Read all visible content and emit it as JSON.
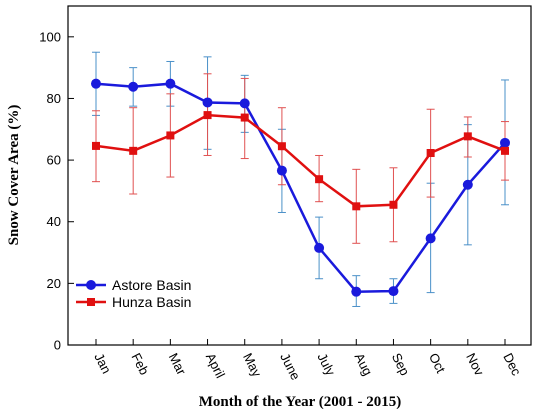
{
  "chart_data": {
    "type": "line",
    "xlabel": "Month of the Year (2001 - 2015)",
    "ylabel": "Snow Cover Area (%)",
    "categories": [
      "Jan",
      "Feb",
      "Mar",
      "April",
      "May",
      "June",
      "July",
      "Aug",
      "Sep",
      "Oct",
      "Nov",
      "Dec"
    ],
    "ylim": [
      0,
      110
    ],
    "yticks": [
      0,
      20,
      40,
      60,
      80,
      100
    ],
    "grid": false,
    "legend_position": "bottom-left",
    "series": [
      {
        "name": "Astore Basin",
        "color": "#1a1adc",
        "error_color": "#4a90c8",
        "marker": "circle",
        "values": [
          84.8,
          83.8,
          84.8,
          78.7,
          78.4,
          56.6,
          31.5,
          17.3,
          17.5,
          34.6,
          52.0,
          65.6
        ],
        "error_low": [
          74.5,
          77.5,
          77.5,
          63.5,
          69.0,
          43.0,
          21.5,
          12.5,
          13.5,
          17.0,
          32.5,
          45.5
        ],
        "error_high": [
          95.0,
          90.0,
          92.0,
          93.5,
          87.5,
          70.0,
          41.5,
          22.5,
          21.5,
          52.5,
          71.5,
          86.0
        ]
      },
      {
        "name": "Hunza Basin",
        "color": "#e01010",
        "error_color": "#e05050",
        "marker": "square",
        "values": [
          64.6,
          63.0,
          68.0,
          74.6,
          73.8,
          64.5,
          53.8,
          45.0,
          45.5,
          62.3,
          67.7,
          63.0
        ],
        "error_low": [
          53.0,
          49.0,
          54.5,
          61.5,
          60.5,
          52.0,
          46.5,
          33.0,
          33.5,
          48.0,
          61.0,
          53.5
        ],
        "error_high": [
          76.0,
          77.0,
          81.5,
          88.0,
          86.5,
          77.0,
          61.5,
          57.0,
          57.5,
          76.5,
          74.0,
          72.5
        ]
      }
    ]
  }
}
